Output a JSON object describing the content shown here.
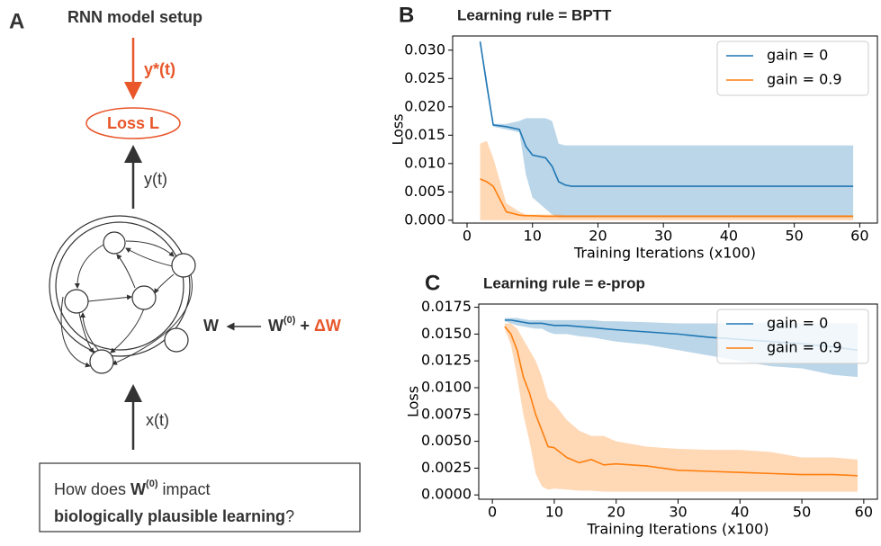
{
  "diagram": {
    "panel_label": "A",
    "title": "RNN model setup",
    "target": "y*(t)",
    "loss": "Loss L",
    "output": "y(t)",
    "input": "x(t)",
    "weight": "W",
    "init_weight": {
      "base": "W",
      "sup": "(0)",
      "rest": " + ",
      "delta": "ΔW"
    },
    "question": {
      "pre": "How does ",
      "w": "W",
      "sup": "(0)",
      "post": " impact",
      "bold": "biologically plausible learning",
      "end": "?"
    }
  },
  "chart_data": [
    {
      "type": "line",
      "panel_label": "B",
      "title": "Learning rule = BPTT",
      "xlabel": "Training Iterations (x100)",
      "ylabel": "Loss",
      "x": [
        2,
        3,
        4,
        6,
        8,
        9,
        10,
        12,
        13,
        14,
        15,
        16,
        18,
        20,
        30,
        40,
        50,
        59
      ],
      "series": [
        {
          "name": "gain = 0",
          "color": "#1f77b4",
          "values": [
            0.0315,
            0.024,
            0.0168,
            0.0165,
            0.016,
            0.013,
            0.0115,
            0.011,
            0.0095,
            0.0068,
            0.0062,
            0.006,
            0.006,
            0.006,
            0.006,
            0.006,
            0.006,
            0.006
          ],
          "band_low": [
            0.031,
            0.023,
            0.0165,
            0.016,
            0.0155,
            0.008,
            0.004,
            0.002,
            0.001,
            0.0005,
            0.0005,
            0.0005,
            0.0005,
            0.0005,
            0.0005,
            0.0005,
            0.0005,
            0.0005
          ],
          "band_high": [
            0.032,
            0.025,
            0.017,
            0.017,
            0.0175,
            0.018,
            0.018,
            0.018,
            0.0175,
            0.0135,
            0.0132,
            0.0132,
            0.0132,
            0.0132,
            0.0132,
            0.0132,
            0.0132,
            0.0132
          ]
        },
        {
          "name": "gain = 0.9",
          "color": "#ff7f0e",
          "values": [
            0.0073,
            0.0068,
            0.006,
            0.0015,
            0.0009,
            0.0008,
            0.0008,
            0.0007,
            0.0007,
            0.0007,
            0.0007,
            0.0007,
            0.0007,
            0.0007,
            0.0007,
            0.0007,
            0.0007,
            0.0007
          ],
          "band_low": [
            0,
            0,
            0,
            0,
            0,
            0,
            0,
            0,
            0,
            0,
            0,
            0,
            0,
            0,
            0,
            0,
            0,
            0
          ],
          "band_high": [
            0.0135,
            0.014,
            0.011,
            0.003,
            0.0015,
            0.001,
            0.001,
            0.001,
            0.001,
            0.001,
            0.0009,
            0.0009,
            0.0009,
            0.0009,
            0.0009,
            0.0009,
            0.0009,
            0.0009
          ]
        }
      ],
      "xlim": [
        -2.2,
        62.7
      ],
      "ylim": [
        -0.0005,
        0.0325
      ],
      "xticks": [
        0,
        10,
        20,
        30,
        40,
        50,
        60
      ],
      "yticks": [
        {
          "value": 0,
          "label": "0.000"
        },
        {
          "value": 0.005,
          "label": "0.005"
        },
        {
          "value": 0.01,
          "label": "0.010"
        },
        {
          "value": 0.015,
          "label": "0.015"
        },
        {
          "value": 0.02,
          "label": "0.020"
        },
        {
          "value": 0.025,
          "label": "0.025"
        },
        {
          "value": 0.03,
          "label": "0.030"
        }
      ],
      "legend": "upper right"
    },
    {
      "type": "line",
      "panel_label": "C",
      "title": "Learning rule = e-prop",
      "xlabel": "Training Iterations (x100)",
      "ylabel": "Loss",
      "x": [
        2,
        3,
        4,
        5,
        6,
        7,
        8,
        9,
        10,
        12,
        14,
        16,
        18,
        20,
        25,
        30,
        35,
        40,
        45,
        50,
        55,
        59
      ],
      "series": [
        {
          "name": "gain = 0",
          "color": "#1f77b4",
          "values": [
            0.0163,
            0.0163,
            0.0162,
            0.0161,
            0.016,
            0.016,
            0.016,
            0.0159,
            0.0158,
            0.0158,
            0.0157,
            0.0156,
            0.0155,
            0.0154,
            0.0152,
            0.015,
            0.0147,
            0.0145,
            0.0143,
            0.0141,
            0.0138,
            0.0135
          ],
          "band_low": [
            0.0162,
            0.016,
            0.0158,
            0.0157,
            0.0156,
            0.0155,
            0.0155,
            0.0152,
            0.015,
            0.015,
            0.0148,
            0.0147,
            0.0145,
            0.0143,
            0.014,
            0.0135,
            0.013,
            0.0125,
            0.012,
            0.0118,
            0.0112,
            0.011
          ],
          "band_high": [
            0.0165,
            0.0165,
            0.0165,
            0.0164,
            0.0163,
            0.0163,
            0.0163,
            0.0163,
            0.0163,
            0.0163,
            0.0163,
            0.0163,
            0.0162,
            0.0162,
            0.0161,
            0.016,
            0.016,
            0.016,
            0.0161,
            0.016,
            0.016,
            0.016
          ]
        },
        {
          "name": "gain = 0.9",
          "color": "#ff7f0e",
          "values": [
            0.0157,
            0.015,
            0.0135,
            0.011,
            0.0095,
            0.0075,
            0.006,
            0.0045,
            0.0044,
            0.0035,
            0.003,
            0.0033,
            0.0028,
            0.0029,
            0.0027,
            0.0023,
            0.0022,
            0.0021,
            0.002,
            0.0019,
            0.0019,
            0.0018
          ],
          "band_low": [
            0.0155,
            0.014,
            0.011,
            0.0075,
            0.005,
            0.002,
            0.0008,
            0.0005,
            0.0006,
            0.0005,
            0.0004,
            0.0004,
            0.0003,
            0.0003,
            0.0003,
            0.0003,
            0.0003,
            0.0003,
            0.0003,
            0.0003,
            0.0003,
            0.0003
          ],
          "band_high": [
            0.016,
            0.016,
            0.0155,
            0.0145,
            0.0135,
            0.0125,
            0.011,
            0.009,
            0.0085,
            0.007,
            0.006,
            0.0055,
            0.0055,
            0.005,
            0.0045,
            0.0043,
            0.0042,
            0.0042,
            0.004,
            0.0035,
            0.0035,
            0.0033
          ]
        }
      ],
      "xlim": [
        -2.2,
        62.2
      ],
      "ylim": [
        -0.0004,
        0.0178
      ],
      "xticks": [
        0,
        10,
        20,
        30,
        40,
        50,
        60
      ],
      "yticks": [
        {
          "value": 0,
          "label": "0.0000"
        },
        {
          "value": 0.0025,
          "label": "0.0025"
        },
        {
          "value": 0.005,
          "label": "0.0050"
        },
        {
          "value": 0.0075,
          "label": "0.0075"
        },
        {
          "value": 0.01,
          "label": "0.0100"
        },
        {
          "value": 0.0125,
          "label": "0.0125"
        },
        {
          "value": 0.015,
          "label": "0.0150"
        },
        {
          "value": 0.0175,
          "label": "0.0175"
        }
      ],
      "legend": "upper right"
    }
  ]
}
